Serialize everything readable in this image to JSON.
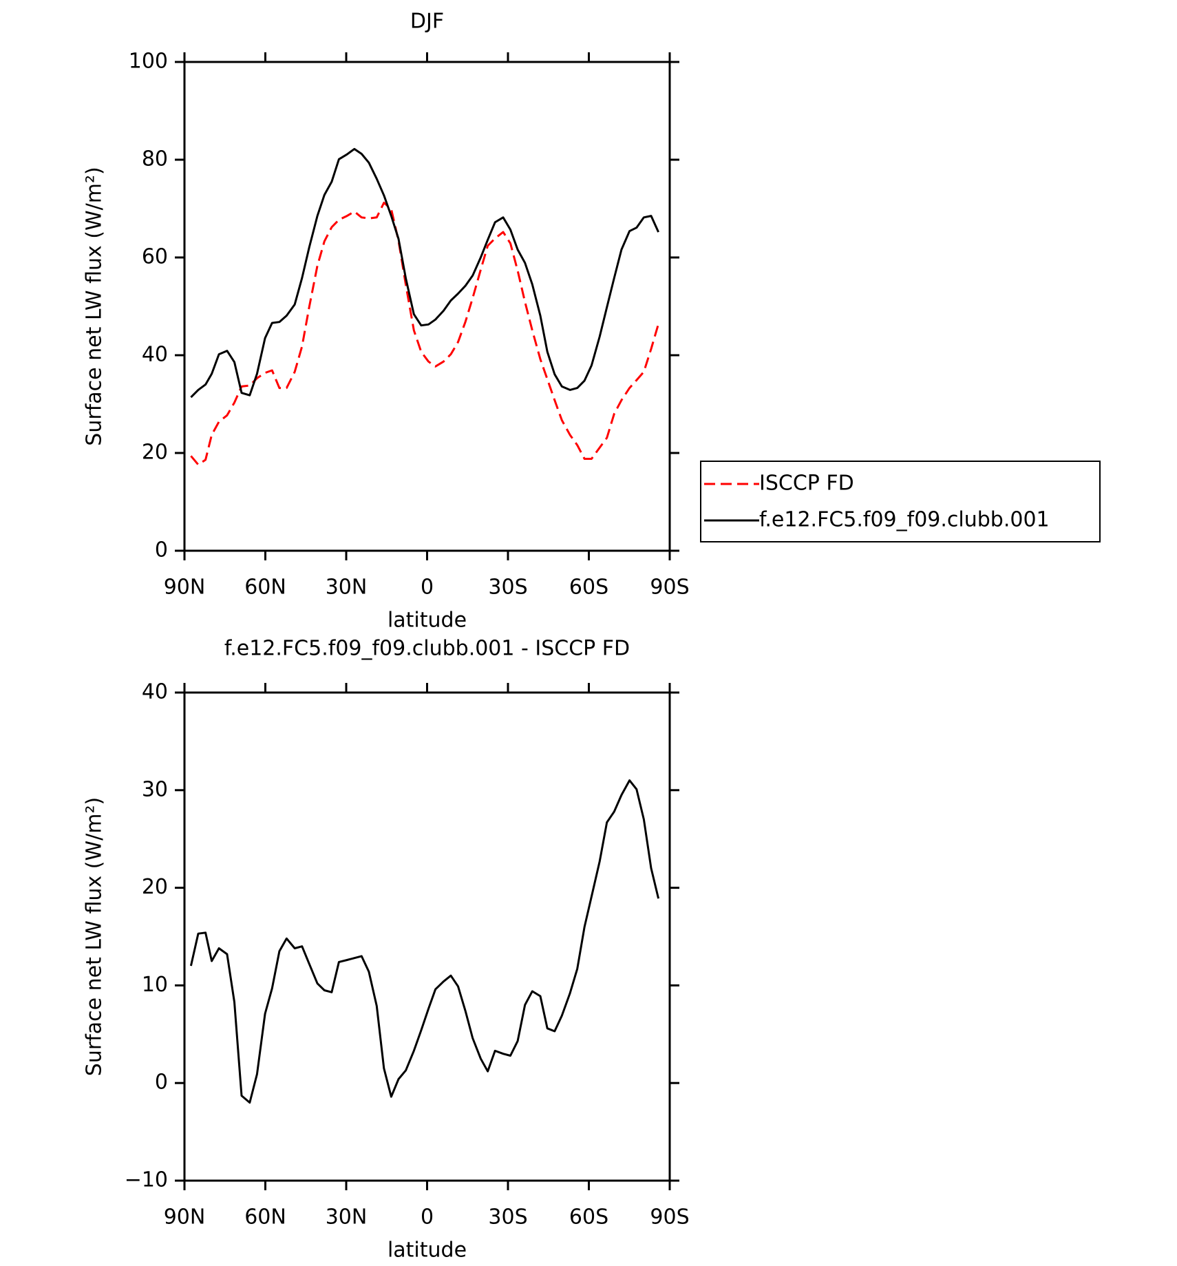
{
  "chart_data": [
    {
      "type": "line",
      "title": "DJF",
      "x_label": "latitude",
      "y_label": "Surface net LW flux (W/m²)",
      "x": [
        87.6,
        84.9,
        82.2,
        79.9,
        77.2,
        74.2,
        71.5,
        68.8,
        65.8,
        63.1,
        60.1,
        57.5,
        54.8,
        52.1,
        49.1,
        46.4,
        43.7,
        40.7,
        38.1,
        35.4,
        32.7,
        29.7,
        27.0,
        24.3,
        21.6,
        18.7,
        16.0,
        13.3,
        10.6,
        7.9,
        4.9,
        2.2,
        -0.5,
        -3.1,
        -6.1,
        -8.8,
        -11.5,
        -14.2,
        -16.9,
        -19.9,
        -22.5,
        -25.2,
        -28.2,
        -30.9,
        -33.6,
        -36.3,
        -39.0,
        -42.0,
        -44.6,
        -47.3,
        -50.0,
        -53.0,
        -55.7,
        -58.4,
        -61.0,
        -64.0,
        -66.7,
        -69.4,
        -72.1,
        -75.1,
        -77.7,
        -80.4,
        -83.1,
        -85.8
      ],
      "series": [
        {
          "name": "ISCCP FD",
          "color": "#ff0000",
          "dashed": true,
          "values": [
            19.4,
            17.6,
            18.6,
            23.7,
            26.4,
            27.7,
            30.3,
            33.6,
            33.8,
            35.3,
            36.4,
            36.9,
            33.3,
            33.3,
            36.6,
            41.8,
            49.9,
            58.3,
            63.3,
            66.2,
            67.7,
            68.5,
            69.4,
            68.2,
            68.0,
            68.2,
            71.2,
            69.9,
            63.4,
            54.4,
            45.1,
            40.7,
            38.7,
            37.7,
            38.7,
            40.2,
            42.7,
            46.8,
            51.7,
            57.5,
            62.4,
            63.9,
            65.2,
            62.9,
            57.3,
            50.9,
            45.1,
            39.2,
            35.1,
            30.8,
            26.7,
            23.7,
            21.6,
            18.8,
            18.8,
            21.1,
            23.1,
            28.0,
            30.8,
            33.3,
            34.9,
            36.6,
            41.3,
            46.4
          ]
        },
        {
          "name": "f.e12.FC5.f09_f09.clubb.001",
          "color": "#000000",
          "dashed": false,
          "values": [
            31.4,
            32.9,
            34.0,
            36.2,
            40.2,
            40.9,
            38.6,
            32.3,
            31.8,
            36.2,
            43.5,
            46.6,
            46.8,
            48.1,
            50.4,
            55.8,
            62.1,
            68.5,
            72.8,
            75.5,
            80.1,
            81.1,
            82.2,
            81.2,
            79.4,
            76.1,
            72.7,
            68.5,
            63.8,
            55.7,
            48.4,
            46.1,
            46.3,
            47.3,
            49.1,
            51.2,
            52.6,
            54.2,
            56.3,
            60.0,
            63.6,
            67.2,
            68.2,
            65.7,
            61.6,
            58.9,
            54.5,
            48.1,
            40.7,
            36.1,
            33.6,
            32.9,
            33.3,
            34.8,
            37.9,
            43.8,
            49.8,
            55.8,
            61.6,
            65.4,
            66.1,
            68.2,
            68.5,
            65.2
          ]
        }
      ],
      "xlim": [
        90,
        -90
      ],
      "xticks": [
        {
          "value": 90,
          "label": "90N"
        },
        {
          "value": 60,
          "label": "60N"
        },
        {
          "value": 30,
          "label": "30N"
        },
        0,
        {
          "value": -30,
          "label": "30S"
        },
        {
          "value": -60,
          "label": "60S"
        },
        {
          "value": -90,
          "label": "90S"
        }
      ],
      "ylim": [
        0,
        100
      ],
      "yticks": [
        0,
        20,
        40,
        60,
        80,
        100
      ],
      "legend": "right"
    },
    {
      "type": "line",
      "title": "f.e12.FC5.f09_f09.clubb.001 - ISCCP FD",
      "x_label": "latitude",
      "y_label": "Surface net LW flux (W/m²)",
      "x": [
        87.6,
        84.9,
        82.2,
        79.9,
        77.2,
        74.2,
        71.5,
        68.8,
        65.8,
        63.1,
        60.1,
        57.5,
        54.8,
        52.1,
        49.1,
        46.4,
        43.7,
        40.7,
        38.1,
        35.4,
        32.7,
        29.7,
        27.0,
        24.3,
        21.6,
        18.7,
        16.0,
        13.3,
        10.6,
        7.9,
        4.9,
        2.2,
        -0.5,
        -3.1,
        -6.1,
        -8.8,
        -11.5,
        -14.2,
        -16.9,
        -19.9,
        -22.5,
        -25.2,
        -28.2,
        -30.9,
        -33.6,
        -36.3,
        -39.0,
        -42.0,
        -44.6,
        -47.3,
        -50.0,
        -53.0,
        -55.7,
        -58.4,
        -61.0,
        -64.0,
        -66.7,
        -69.4,
        -72.1,
        -75.1,
        -77.7,
        -80.4,
        -83.1,
        -85.8
      ],
      "series": [
        {
          "name": null,
          "color": "#000000",
          "dashed": false,
          "values": [
            12.0,
            15.3,
            15.4,
            12.5,
            13.8,
            13.2,
            8.3,
            -1.3,
            -2.0,
            0.9,
            7.1,
            9.7,
            13.5,
            14.8,
            13.8,
            14.0,
            12.2,
            10.2,
            9.5,
            9.3,
            12.4,
            12.6,
            12.8,
            13.0,
            11.4,
            7.9,
            1.5,
            -1.4,
            0.4,
            1.3,
            3.3,
            5.4,
            7.6,
            9.6,
            10.4,
            11.0,
            9.9,
            7.4,
            4.6,
            2.5,
            1.2,
            3.3,
            3.0,
            2.8,
            4.3,
            8.0,
            9.4,
            8.9,
            5.6,
            5.3,
            6.9,
            9.2,
            11.7,
            16.0,
            19.1,
            22.7,
            26.7,
            27.8,
            29.5,
            31.0,
            30.1,
            27.0,
            22.0,
            18.9
          ]
        }
      ],
      "xlim": [
        90,
        -90
      ],
      "xticks": [
        {
          "value": 90,
          "label": "90N"
        },
        {
          "value": 60,
          "label": "60N"
        },
        {
          "value": 30,
          "label": "30N"
        },
        0,
        {
          "value": -30,
          "label": "30S"
        },
        {
          "value": -60,
          "label": "60S"
        },
        {
          "value": -90,
          "label": "90S"
        }
      ],
      "ylim": [
        -10,
        40
      ],
      "yticks": [
        {
          "value": -10,
          "label": "−10"
        },
        0,
        10,
        20,
        30,
        40
      ]
    }
  ]
}
